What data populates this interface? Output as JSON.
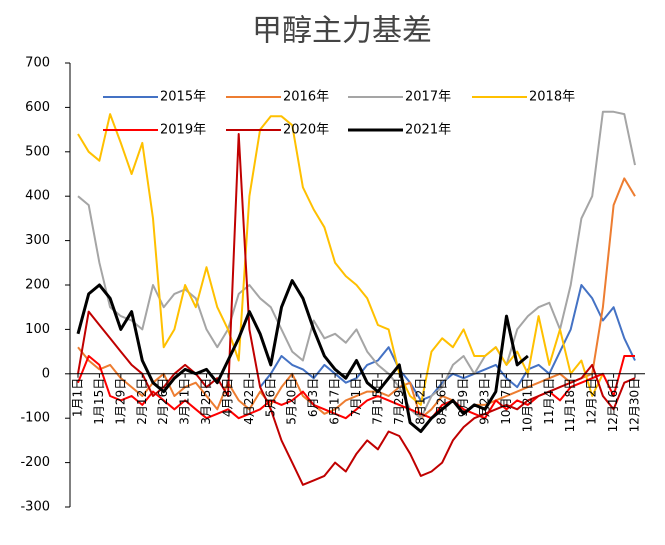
{
  "chart_data": {
    "type": "line",
    "title": "甲醇主力基差",
    "categories": [
      "1月1日",
      null,
      "1月15日",
      null,
      "1月29日",
      null,
      "2月12日",
      null,
      "2月26日",
      null,
      "3月11日",
      null,
      "3月25日",
      null,
      "4月8日",
      null,
      "4月22日",
      null,
      "5月6日",
      null,
      "5月20日",
      null,
      "6月3日",
      null,
      "6月17日",
      null,
      "7月1日",
      null,
      "7月15日",
      null,
      "7月29日",
      null,
      "8月12日",
      null,
      "8月26日",
      null,
      "9月9日",
      null,
      "9月23日",
      null,
      "10月7日",
      null,
      "10月21日",
      null,
      "11月4日",
      null,
      "11月18日",
      null,
      "12月2日",
      null,
      "12月16日",
      null,
      "12月30日"
    ],
    "series": [
      {
        "name": "2015年",
        "color": "#4472c4",
        "values": [
          null,
          null,
          null,
          null,
          null,
          null,
          null,
          null,
          null,
          null,
          null,
          null,
          null,
          null,
          null,
          null,
          null,
          -30,
          0,
          40,
          20,
          10,
          -10,
          20,
          0,
          -20,
          -10,
          20,
          30,
          60,
          10,
          -20,
          -60,
          -50,
          -20,
          0,
          -10,
          0,
          10,
          20,
          -10,
          -30,
          10,
          20,
          0,
          50,
          100,
          200,
          170,
          120,
          150,
          80,
          30
        ]
      },
      {
        "name": "2016年",
        "color": "#ed7d31",
        "values": [
          60,
          30,
          10,
          20,
          -10,
          -30,
          -50,
          -20,
          0,
          -50,
          -30,
          -20,
          -50,
          -80,
          -20,
          -60,
          -80,
          -40,
          -70,
          -30,
          0,
          -50,
          -70,
          -90,
          -80,
          -60,
          -50,
          -40,
          -40,
          -50,
          -30,
          -20,
          -100,
          -80,
          -50,
          -60,
          -90,
          -70,
          -70,
          -60,
          -50,
          -40,
          -30,
          -20,
          -10,
          0,
          -20,
          -10,
          0,
          150,
          380,
          440,
          400
        ]
      },
      {
        "name": "2017年",
        "color": "#a5a5a5",
        "values": [
          400,
          380,
          250,
          150,
          130,
          120,
          100,
          200,
          150,
          180,
          190,
          170,
          100,
          60,
          100,
          180,
          200,
          170,
          150,
          100,
          50,
          30,
          120,
          80,
          90,
          70,
          100,
          50,
          20,
          0,
          -30,
          -80,
          -100,
          -50,
          -30,
          20,
          40,
          0,
          40,
          60,
          20,
          100,
          130,
          150,
          160,
          100,
          200,
          350,
          400,
          590,
          590,
          585,
          470
        ]
      },
      {
        "name": "2018年",
        "color": "#ffc000",
        "values": [
          540,
          500,
          480,
          585,
          520,
          450,
          520,
          350,
          60,
          100,
          200,
          150,
          240,
          150,
          100,
          30,
          400,
          550,
          580,
          580,
          560,
          420,
          370,
          330,
          250,
          220,
          200,
          170,
          110,
          100,
          0,
          -50,
          -70,
          50,
          80,
          60,
          100,
          40,
          40,
          60,
          20,
          50,
          0,
          130,
          20,
          100,
          0,
          30,
          -50,
          0,
          null,
          null,
          null
        ]
      },
      {
        "name": "2019年",
        "color": "#ff0000",
        "values": [
          -20,
          40,
          20,
          -50,
          -60,
          -50,
          -70,
          -40,
          -60,
          -80,
          -60,
          -80,
          -100,
          -90,
          -80,
          -100,
          -90,
          -80,
          -60,
          -70,
          -60,
          -40,
          -70,
          -80,
          -90,
          -100,
          -80,
          -60,
          -50,
          -60,
          -70,
          -80,
          -90,
          -100,
          -70,
          -60,
          -80,
          -90,
          -100,
          -60,
          -80,
          -60,
          -70,
          -50,
          -40,
          -60,
          -30,
          -20,
          -10,
          0,
          -50,
          40,
          40
        ]
      },
      {
        "name": "2020年",
        "color": "#c00000",
        "values": [
          0,
          140,
          110,
          80,
          50,
          20,
          0,
          -50,
          -30,
          0,
          20,
          0,
          -30,
          -10,
          -50,
          540,
          100,
          -30,
          -80,
          -150,
          -200,
          -250,
          -240,
          -230,
          -200,
          -220,
          -180,
          -150,
          -170,
          -130,
          -140,
          -180,
          -230,
          -220,
          -200,
          -150,
          -120,
          -100,
          -90,
          -80,
          -70,
          -80,
          -60,
          -50,
          -40,
          -30,
          -20,
          -10,
          20,
          -50,
          -80,
          -20,
          -10
        ]
      },
      {
        "name": "2021年",
        "color": "#000000",
        "values": [
          90,
          180,
          200,
          170,
          100,
          140,
          30,
          -20,
          -40,
          -10,
          10,
          0,
          10,
          -20,
          30,
          80,
          140,
          90,
          20,
          150,
          210,
          170,
          100,
          40,
          10,
          -10,
          30,
          -20,
          -40,
          -10,
          20,
          -110,
          -130,
          -100,
          -80,
          -60,
          -90,
          -70,
          -80,
          -40,
          130,
          20,
          40,
          null,
          null,
          null,
          null,
          null,
          null,
          null,
          null,
          null,
          null
        ]
      }
    ],
    "ylim": [
      -300,
      700
    ],
    "yticks": [
      -300,
      -200,
      -100,
      0,
      100,
      200,
      300,
      400,
      500,
      600,
      700
    ],
    "grid": false
  }
}
